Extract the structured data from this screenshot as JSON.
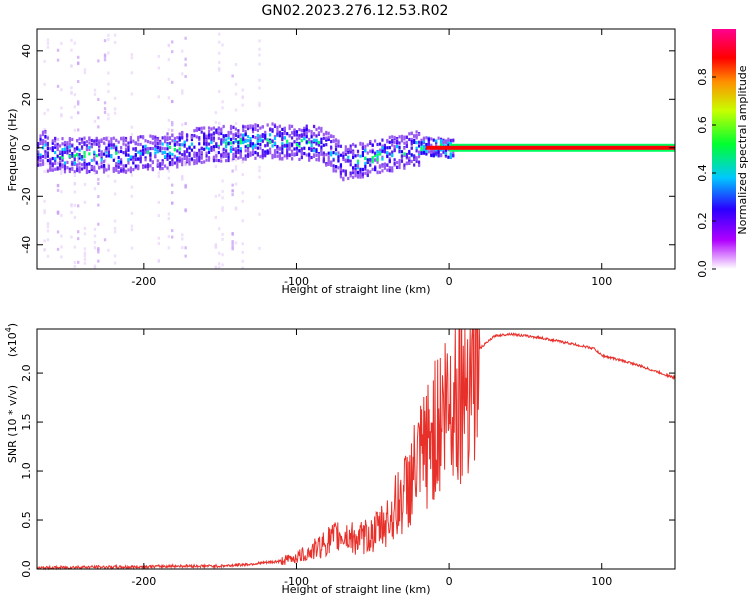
{
  "title": "GN02.2023.276.12.53.R02",
  "chart_data": [
    {
      "type": "heatmap",
      "xlabel": "Height of straight line (km)",
      "ylabel": "Frequency (Hz)",
      "xlim": [
        -270,
        148
      ],
      "ylim": [
        -50,
        49
      ],
      "x_ticks": [
        "-200",
        "-100",
        "0",
        "100"
      ],
      "x_tick_values": [
        -200,
        -100,
        0,
        100
      ],
      "y_ticks": [
        "-40",
        "-20",
        "0",
        "20",
        "40"
      ],
      "y_tick_values": [
        -40,
        -20,
        0,
        20,
        40
      ],
      "colorbar": {
        "label": "Normalized spectral amplitude",
        "range": [
          0,
          1
        ],
        "ticks": [
          "0.0",
          "0.2",
          "0.4",
          "0.6",
          "0.8"
        ],
        "tick_values": [
          0.0,
          0.2,
          0.4,
          0.6,
          0.8
        ]
      },
      "ridge": {
        "description_free_points": [
          {
            "x": -265,
            "f": -3
          },
          {
            "x": -240,
            "f": -3
          },
          {
            "x": -215,
            "f": -3
          },
          {
            "x": -190,
            "f": -2
          },
          {
            "x": -165,
            "f": 1
          },
          {
            "x": -140,
            "f": 2
          },
          {
            "x": -120,
            "f": 3
          },
          {
            "x": -100,
            "f": 2
          },
          {
            "x": -85,
            "f": 2
          },
          {
            "x": -70,
            "f": -6
          },
          {
            "x": -55,
            "f": -5
          },
          {
            "x": -45,
            "f": -3
          },
          {
            "x": -30,
            "f": -2
          },
          {
            "x": -15,
            "f": 1
          },
          {
            "x": 0,
            "f": 0
          },
          {
            "x": 148,
            "f": 0
          }
        ]
      },
      "grid": false
    },
    {
      "type": "line",
      "xlabel": "Height of straight line (km)",
      "ylabel": "SNR (10 * v/v)",
      "scale_label": "(x10",
      "scale_exp": "4",
      "scale_close": ")",
      "xlim": [
        -270,
        148
      ],
      "ylim": [
        0,
        2.45
      ],
      "x_ticks": [
        "-200",
        "-100",
        "0",
        "100"
      ],
      "x_tick_values": [
        -200,
        -100,
        0,
        100
      ],
      "y_ticks": [
        "0.0",
        "0.5",
        "1.0",
        "1.5",
        "2.0"
      ],
      "y_tick_values": [
        0.0,
        0.5,
        1.0,
        1.5,
        2.0
      ],
      "series": [
        {
          "color": "#e8302a",
          "x": [
            -270,
            -240,
            -210,
            -180,
            -150,
            -130,
            -110,
            -100,
            -90,
            -80,
            -70,
            -60,
            -50,
            -40,
            -30,
            -20,
            -10,
            0,
            10,
            20,
            30,
            40,
            60,
            80,
            95,
            100,
            120,
            148
          ],
          "y": [
            0.01,
            0.02,
            0.02,
            0.03,
            0.03,
            0.05,
            0.08,
            0.12,
            0.18,
            0.28,
            0.35,
            0.3,
            0.35,
            0.5,
            0.75,
            1.05,
            1.4,
            1.7,
            2.0,
            2.25,
            2.38,
            2.4,
            2.36,
            2.3,
            2.25,
            2.18,
            2.1,
            1.95
          ]
        }
      ],
      "grid": false
    }
  ]
}
